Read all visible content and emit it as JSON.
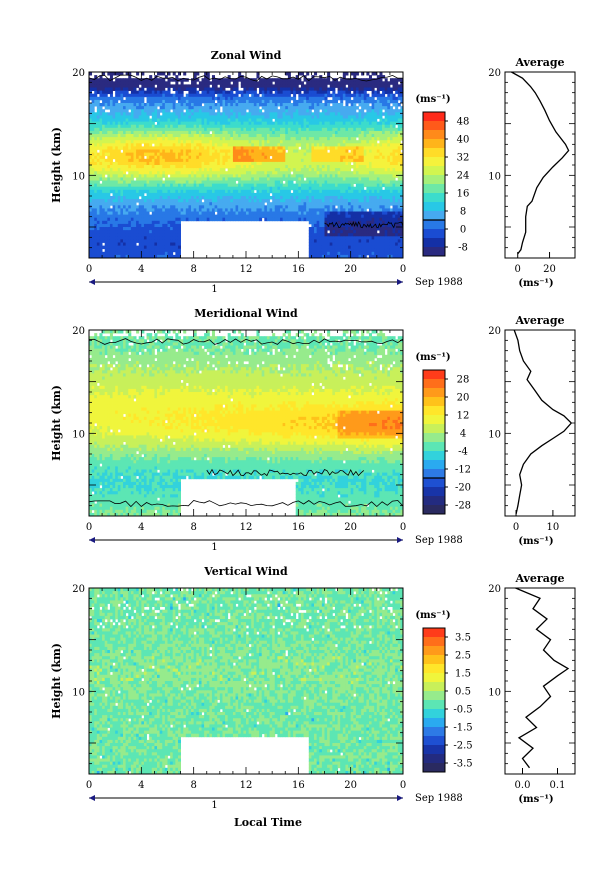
{
  "chart_data": [
    {
      "type": "heatmap",
      "panel": "zonal",
      "title": "Zonal Wind",
      "ylabel": "Height (km)",
      "xlim": [
        0,
        24
      ],
      "ylim": [
        2,
        20
      ],
      "x_ticks": [
        "0",
        "4",
        "8",
        "12",
        "16",
        "20",
        "0"
      ],
      "y_ticks": [
        "20",
        "10"
      ],
      "date_tick": "1",
      "date_label": "Sep 1988",
      "colorbar": {
        "unit_label": "(ms⁻¹)",
        "tick_labels": [
          "48",
          "40",
          "32",
          "24",
          "16",
          "8",
          "0",
          "-8"
        ],
        "colors": [
          "#ff2a1a",
          "#ff5a1a",
          "#ff8a1a",
          "#ffb41a",
          "#ffdc28",
          "#f5f23c",
          "#d2f550",
          "#a6f07a",
          "#6ee8a6",
          "#3cdccc",
          "#28c8e6",
          "#46aaf0",
          "#2878e6",
          "#1a4cd2",
          "#1430a6",
          "#2a2a80"
        ],
        "contour_value": "0"
      },
      "zero_contour": true,
      "profile_profile_pts": [
        [
          0,
          2.4
        ],
        [
          2,
          2.8
        ],
        [
          3,
          3.5
        ],
        [
          5,
          4.5
        ],
        [
          5,
          6
        ],
        [
          6,
          7
        ],
        [
          9,
          7.5
        ],
        [
          12,
          8.8
        ],
        [
          16,
          9.8
        ],
        [
          22,
          10.8
        ],
        [
          28,
          11.7
        ],
        [
          32,
          12.4
        ],
        [
          30,
          13
        ],
        [
          24,
          14.2
        ],
        [
          20,
          15.3
        ],
        [
          17,
          16.3
        ],
        [
          14,
          17.2
        ],
        [
          11,
          18
        ],
        [
          8,
          18.6
        ],
        [
          3,
          19.4
        ],
        [
          -4,
          20
        ]
      ],
      "profile": {
        "title": "Average",
        "xlim": [
          -8,
          36
        ],
        "x_ticks": [
          "0",
          "20"
        ],
        "x_tick_values": [
          0,
          20
        ],
        "xlabel": "(ms⁻¹)"
      }
    },
    {
      "type": "heatmap",
      "panel": "meridional",
      "title": "Meridional Wind",
      "ylabel": "Height (km)",
      "xlim": [
        0,
        24
      ],
      "ylim": [
        2,
        20
      ],
      "x_ticks": [
        "0",
        "4",
        "8",
        "12",
        "16",
        "20",
        "0"
      ],
      "y_ticks": [
        "20",
        "10"
      ],
      "date_tick": "1",
      "date_label": "Sep 1988",
      "colorbar": {
        "unit_label": "(ms⁻¹)",
        "tick_labels": [
          "28",
          "20",
          "12",
          "4",
          "-4",
          "-12",
          "-20",
          "-28"
        ],
        "colors": [
          "#ff3c1a",
          "#ff6e1a",
          "#ff9a1a",
          "#ffc21a",
          "#ffe62a",
          "#f0f53c",
          "#c8f05a",
          "#96eb8c",
          "#5ce6b4",
          "#32d2dc",
          "#2aaaf0",
          "#2d7ae6",
          "#1e50d2",
          "#1834a8",
          "#232b80",
          "#2a2a60"
        ],
        "contour_value": "0"
      },
      "zero_contour": true,
      "profile_profile_pts": [
        [
          0,
          2.2
        ],
        [
          0.5,
          3
        ],
        [
          1,
          4
        ],
        [
          1.5,
          5
        ],
        [
          1,
          6
        ],
        [
          2,
          7
        ],
        [
          4,
          8
        ],
        [
          7,
          8.8
        ],
        [
          10,
          9.5
        ],
        [
          13,
          10.2
        ],
        [
          15,
          11
        ],
        [
          13,
          11.7
        ],
        [
          10,
          12.3
        ],
        [
          7,
          13.2
        ],
        [
          5,
          14.2
        ],
        [
          3,
          15.2
        ],
        [
          4,
          16
        ],
        [
          2,
          17
        ],
        [
          1,
          18
        ],
        [
          0.5,
          19
        ],
        [
          -0.5,
          20
        ]
      ],
      "profile": {
        "title": "Average",
        "xlim": [
          -3,
          16
        ],
        "x_ticks": [
          "0",
          "10"
        ],
        "x_tick_values": [
          0,
          10
        ],
        "xlabel": "(ms⁻¹)"
      }
    },
    {
      "type": "heatmap",
      "panel": "vertical",
      "title": "Vertical Wind",
      "ylabel": "Height (km)",
      "xlabel": "Local Time",
      "xlim": [
        0,
        24
      ],
      "ylim": [
        2,
        20
      ],
      "x_ticks": [
        "0",
        "4",
        "8",
        "12",
        "16",
        "20",
        "0"
      ],
      "y_ticks": [
        "20",
        "10"
      ],
      "date_tick": "1",
      "date_label": "Sep 1988",
      "colorbar": {
        "unit_label": "(ms⁻¹)",
        "tick_labels": [
          "3.5",
          "2.5",
          "1.5",
          "0.5",
          "-0.5",
          "-1.5",
          "-2.5",
          "-3.5"
        ],
        "colors": [
          "#ff3c1a",
          "#ff6e1a",
          "#ff9a1a",
          "#ffc21a",
          "#ffe62a",
          "#f0f53c",
          "#c8f05a",
          "#96eb8c",
          "#5ce6b4",
          "#32d2dc",
          "#2aaaf0",
          "#2d7ae6",
          "#1e50d2",
          "#1834a8",
          "#232b80",
          "#2a2a60"
        ],
        "contour_value": ""
      },
      "zero_contour": false,
      "profile_profile_pts": [
        [
          0.02,
          2.6
        ],
        [
          0.0,
          3.5
        ],
        [
          0.03,
          4.5
        ],
        [
          -0.01,
          5.5
        ],
        [
          0.04,
          6.5
        ],
        [
          0.01,
          7.5
        ],
        [
          0.05,
          8.5
        ],
        [
          0.08,
          9.5
        ],
        [
          0.06,
          10.5
        ],
        [
          0.1,
          11.5
        ],
        [
          0.13,
          12.2
        ],
        [
          0.09,
          13
        ],
        [
          0.06,
          14
        ],
        [
          0.08,
          15
        ],
        [
          0.04,
          16
        ],
        [
          0.07,
          17
        ],
        [
          0.03,
          18
        ],
        [
          0.05,
          19
        ],
        [
          -0.02,
          20
        ]
      ],
      "profile": {
        "title": "Average",
        "xlim": [
          -0.05,
          0.15
        ],
        "x_ticks": [
          "0.0",
          "0.1"
        ],
        "x_tick_values": [
          0,
          0.1
        ],
        "xlabel": "(ms⁻¹)"
      }
    }
  ]
}
